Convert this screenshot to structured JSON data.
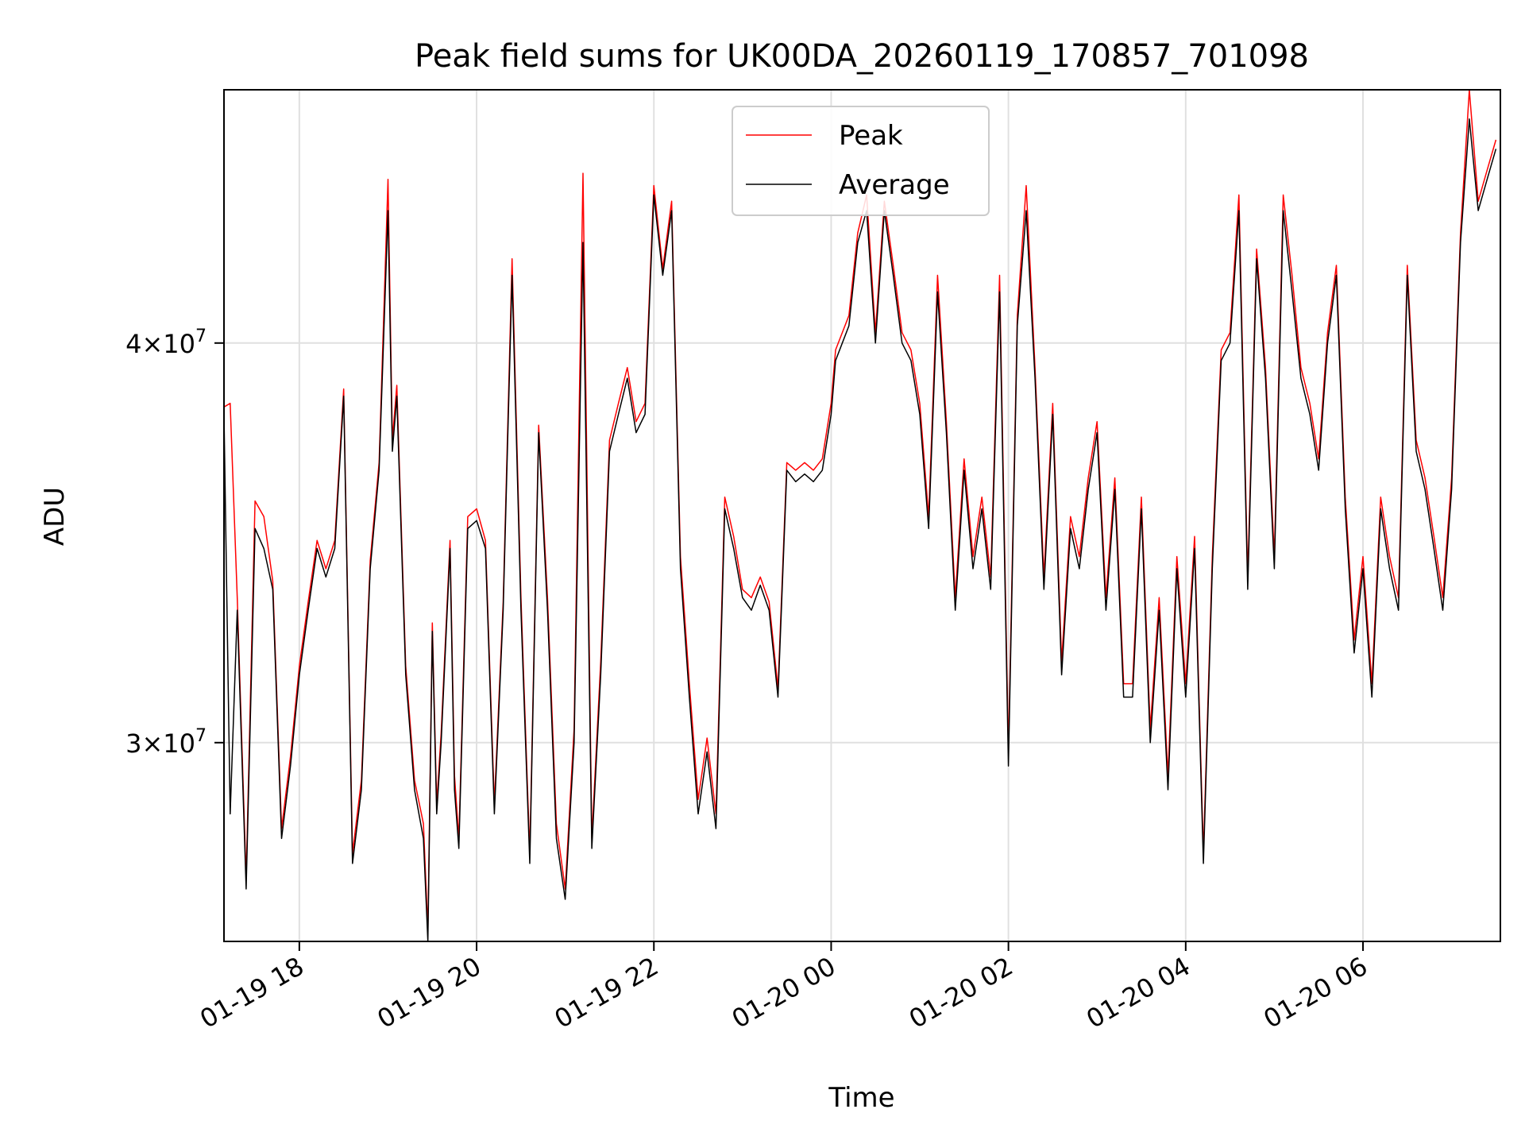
{
  "chart_data": {
    "type": "line",
    "title": "Peak field sums for UK00DA_20260119_170857_701098",
    "xlabel": "Time",
    "ylabel": "ADU",
    "yscale": "log",
    "ylim": [
      26000000,
      48000000
    ],
    "xlim_hours": [
      -6.85,
      7.55
    ],
    "grid": true,
    "legend_location": "upper center",
    "x_ticks": [
      {
        "label": "01-19 18",
        "hour": -6
      },
      {
        "label": "01-19 20",
        "hour": -4
      },
      {
        "label": "01-19 22",
        "hour": -2
      },
      {
        "label": "01-20 00",
        "hour": 0
      },
      {
        "label": "01-20 02",
        "hour": 2
      },
      {
        "label": "01-20 04",
        "hour": 4
      },
      {
        "label": "01-20 06",
        "hour": 6
      }
    ],
    "y_ticks": [
      {
        "base": "3×10",
        "exp": "7",
        "value": 30000000
      },
      {
        "base": "4×10",
        "exp": "7",
        "value": 40000000
      }
    ],
    "series": [
      {
        "name": "Peak",
        "color": "#ff0000"
      },
      {
        "name": "Average",
        "color": "#000000"
      }
    ],
    "x_hours": [
      -6.85,
      -6.78,
      -6.7,
      -6.6,
      -6.5,
      -6.4,
      -6.3,
      -6.2,
      -6.1,
      -6.0,
      -5.9,
      -5.8,
      -5.7,
      -5.6,
      -5.5,
      -5.4,
      -5.3,
      -5.2,
      -5.1,
      -5.0,
      -4.95,
      -4.9,
      -4.8,
      -4.7,
      -4.6,
      -4.55,
      -4.5,
      -4.45,
      -4.4,
      -4.3,
      -4.25,
      -4.2,
      -4.1,
      -4.0,
      -3.9,
      -3.8,
      -3.7,
      -3.6,
      -3.5,
      -3.4,
      -3.3,
      -3.2,
      -3.1,
      -3.0,
      -2.9,
      -2.8,
      -2.7,
      -2.6,
      -2.5,
      -2.4,
      -2.3,
      -2.2,
      -2.1,
      -2.0,
      -1.9,
      -1.8,
      -1.7,
      -1.6,
      -1.5,
      -1.4,
      -1.3,
      -1.2,
      -1.1,
      -1.0,
      -0.9,
      -0.8,
      -0.7,
      -0.6,
      -0.5,
      -0.4,
      -0.3,
      -0.2,
      -0.1,
      0.0,
      0.05,
      0.2,
      0.3,
      0.4,
      0.5,
      0.6,
      0.7,
      0.8,
      0.9,
      1.0,
      1.1,
      1.2,
      1.3,
      1.4,
      1.5,
      1.6,
      1.7,
      1.8,
      1.9,
      2.0,
      2.1,
      2.2,
      2.3,
      2.4,
      2.5,
      2.6,
      2.7,
      2.8,
      2.9,
      3.0,
      3.1,
      3.2,
      3.3,
      3.4,
      3.5,
      3.6,
      3.7,
      3.8,
      3.9,
      4.0,
      4.1,
      4.2,
      4.3,
      4.4,
      4.5,
      4.6,
      4.7,
      4.8,
      4.9,
      5.0,
      5.1,
      5.2,
      5.3,
      5.4,
      5.5,
      5.6,
      5.7,
      5.8,
      5.9,
      6.0,
      6.1,
      6.2,
      6.3,
      6.4,
      6.5,
      6.6,
      6.7,
      6.8,
      6.9,
      7.0,
      7.1,
      7.2,
      7.3,
      7.4,
      7.5
    ],
    "average": [
      38000000,
      28500000,
      33000000,
      27000000,
      35000000,
      34500000,
      33500000,
      28000000,
      29500000,
      31500000,
      33000000,
      34500000,
      33800000,
      34500000,
      38500000,
      27500000,
      29000000,
      34000000,
      36500000,
      44000000,
      37000000,
      38500000,
      31500000,
      29000000,
      28000000,
      26000000,
      32500000,
      28500000,
      30000000,
      34500000,
      29000000,
      27800000,
      35000000,
      35200000,
      34500000,
      28500000,
      33000000,
      42000000,
      33000000,
      27500000,
      37500000,
      33000000,
      28000000,
      26800000,
      30000000,
      43000000,
      27800000,
      31500000,
      37000000,
      38000000,
      39000000,
      37500000,
      38000000,
      44500000,
      42000000,
      44000000,
      34000000,
      31000000,
      28500000,
      29800000,
      28200000,
      35500000,
      34500000,
      33300000,
      33000000,
      33600000,
      33000000,
      31000000,
      36500000,
      36200000,
      36400000,
      36200000,
      36500000,
      38000000,
      39500000,
      40500000,
      43000000,
      44000000,
      40000000,
      44000000,
      42000000,
      40000000,
      39500000,
      38000000,
      35000000,
      41500000,
      37500000,
      33000000,
      36500000,
      34000000,
      35500000,
      33500000,
      41500000,
      29500000,
      40500000,
      44000000,
      39000000,
      33500000,
      38000000,
      31500000,
      35000000,
      34000000,
      36000000,
      37500000,
      33000000,
      36000000,
      31000000,
      31000000,
      35500000,
      30000000,
      33000000,
      29000000,
      34000000,
      31000000,
      34500000,
      27500000,
      34000000,
      39500000,
      40000000,
      44000000,
      33500000,
      42500000,
      39000000,
      34000000,
      44000000,
      41500000,
      39000000,
      38000000,
      36500000,
      40000000,
      42000000,
      35500000,
      32000000,
      34000000,
      31000000,
      35500000,
      34000000,
      33000000,
      42000000,
      37000000,
      36000000,
      34500000,
      33000000,
      36000000,
      43000000,
      47000000,
      44000000,
      45000000,
      46000000
    ],
    "peak": [
      38200000,
      38300000,
      33300000,
      27200000,
      35700000,
      35300000,
      33700000,
      28200000,
      29700000,
      31700000,
      33200000,
      34700000,
      34000000,
      34700000,
      38700000,
      27700000,
      29200000,
      34200000,
      36700000,
      45000000,
      37300000,
      38800000,
      31700000,
      29200000,
      28300000,
      26200000,
      32700000,
      28700000,
      30200000,
      34700000,
      29300000,
      28000000,
      35300000,
      35500000,
      34700000,
      28700000,
      33200000,
      42500000,
      33300000,
      27700000,
      37700000,
      33300000,
      28300000,
      27000000,
      30300000,
      45200000,
      28000000,
      31800000,
      37300000,
      38300000,
      39300000,
      37800000,
      38300000,
      44800000,
      42200000,
      44300000,
      34300000,
      31300000,
      28800000,
      30100000,
      28500000,
      35800000,
      34800000,
      33500000,
      33300000,
      33800000,
      33200000,
      31200000,
      36700000,
      36500000,
      36700000,
      36500000,
      36800000,
      38300000,
      39800000,
      40800000,
      43300000,
      44500000,
      40300000,
      44300000,
      42300000,
      40300000,
      39800000,
      38300000,
      35300000,
      42000000,
      37800000,
      33300000,
      36800000,
      34300000,
      35800000,
      33800000,
      42000000,
      29800000,
      40800000,
      44800000,
      39300000,
      33800000,
      38300000,
      31800000,
      35300000,
      34300000,
      36300000,
      37800000,
      33300000,
      36300000,
      31300000,
      31300000,
      35800000,
      30300000,
      33300000,
      29300000,
      34300000,
      31300000,
      34800000,
      27700000,
      34300000,
      39800000,
      40300000,
      44500000,
      33800000,
      42800000,
      39300000,
      34300000,
      44500000,
      42000000,
      39300000,
      38300000,
      36800000,
      40300000,
      42300000,
      35800000,
      32300000,
      34300000,
      31300000,
      35800000,
      34300000,
      33300000,
      42300000,
      37300000,
      36300000,
      34800000,
      33300000,
      36300000,
      43300000,
      48000000,
      44300000,
      45300000,
      46300000
    ]
  }
}
